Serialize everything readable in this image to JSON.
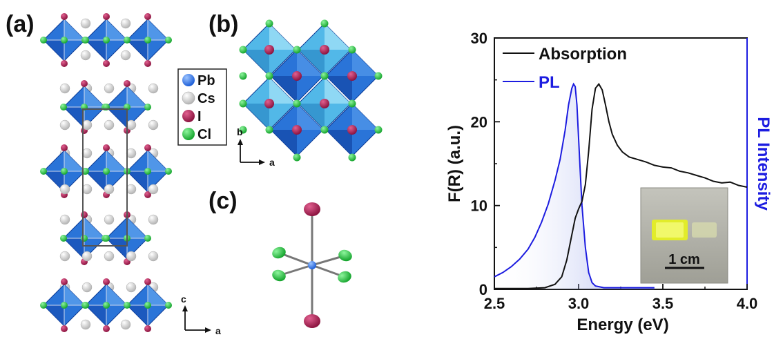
{
  "panels": {
    "a": {
      "label": "(a)",
      "axes": {
        "c": "c",
        "a": "a"
      }
    },
    "b": {
      "label": "(b)",
      "axes": {
        "b": "b",
        "a": "a"
      }
    },
    "c": {
      "label": "(c)"
    }
  },
  "legend": {
    "items": [
      {
        "label": "Pb",
        "color": "#1e5fd8"
      },
      {
        "label": "Cs",
        "color": "#cfcfcf"
      },
      {
        "label": "I",
        "color": "#a11d4d"
      },
      {
        "label": "Cl",
        "color": "#1fbf3a"
      }
    ]
  },
  "colors": {
    "octahedron": "#2a74d8",
    "octahedron_light": "#52b8e8",
    "pl_series": "#1c1ce0",
    "absorption_series": "#111111"
  },
  "inset": {
    "scale_label": "1 cm"
  },
  "chart_data": {
    "type": "line",
    "xlabel": "Energy (eV)",
    "ylabel": "F(R) (a.u.)",
    "y2label": "PL Intensity",
    "xlim": [
      2.5,
      4.0
    ],
    "ylim": [
      0,
      30
    ],
    "xticks": [
      "2.5",
      "3.0",
      "3.5",
      "4.0"
    ],
    "yticks": [
      "0",
      "10",
      "20",
      "30"
    ],
    "legend_position": "top-left",
    "series": [
      {
        "name": "Absorption",
        "color": "#111111",
        "x": [
          2.5,
          2.7,
          2.8,
          2.86,
          2.9,
          2.93,
          2.96,
          2.98,
          3.0,
          3.02,
          3.04,
          3.06,
          3.08,
          3.1,
          3.12,
          3.14,
          3.16,
          3.18,
          3.2,
          3.23,
          3.26,
          3.3,
          3.35,
          3.4,
          3.45,
          3.5,
          3.55,
          3.6,
          3.65,
          3.7,
          3.75,
          3.8,
          3.85,
          3.9,
          3.95,
          4.0
        ],
        "y": [
          0.1,
          0.1,
          0.2,
          0.6,
          1.5,
          3.5,
          6.5,
          8.5,
          9.6,
          10.5,
          12.5,
          16.5,
          21.5,
          24.0,
          24.5,
          23.8,
          22.0,
          20.0,
          18.5,
          17.2,
          16.4,
          15.8,
          15.5,
          15.2,
          14.8,
          14.6,
          14.5,
          14.1,
          13.9,
          13.6,
          13.3,
          12.9,
          12.7,
          12.8,
          12.4,
          12.2
        ]
      },
      {
        "name": "PL",
        "color": "#1c1ce0",
        "x": [
          2.5,
          2.55,
          2.6,
          2.65,
          2.7,
          2.74,
          2.78,
          2.82,
          2.86,
          2.89,
          2.92,
          2.94,
          2.96,
          2.97,
          2.98,
          2.99,
          3.0,
          3.01,
          3.02,
          3.04,
          3.06,
          3.08,
          3.1,
          3.15,
          3.2,
          3.3,
          3.45
        ],
        "y": [
          1.5,
          2.0,
          2.7,
          3.6,
          4.8,
          6.2,
          8.0,
          10.2,
          13.0,
          15.5,
          19.0,
          22.0,
          24.0,
          24.5,
          24.2,
          22.0,
          18.0,
          14.0,
          10.0,
          5.0,
          2.0,
          0.8,
          0.4,
          0.2,
          0.2,
          0.2,
          0.2
        ]
      }
    ]
  }
}
